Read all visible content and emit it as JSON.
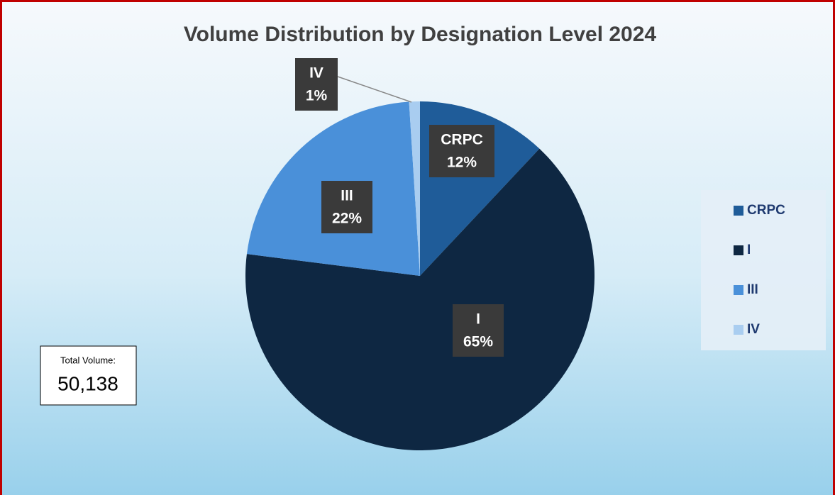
{
  "chart_data": {
    "type": "pie",
    "title": "Volume Distribution by Designation Level 2024",
    "categories": [
      "CRPC",
      "I",
      "III",
      "IV"
    ],
    "values": [
      12,
      65,
      22,
      1
    ],
    "value_labels": [
      "12%",
      "65%",
      "22%",
      "1%"
    ],
    "series_colors": [
      "#1f5c99",
      "#0e2742",
      "#4a90d9",
      "#a9cdf0"
    ],
    "legend": "right",
    "annotations": [
      "Total Volume:",
      "50,138"
    ]
  }
}
